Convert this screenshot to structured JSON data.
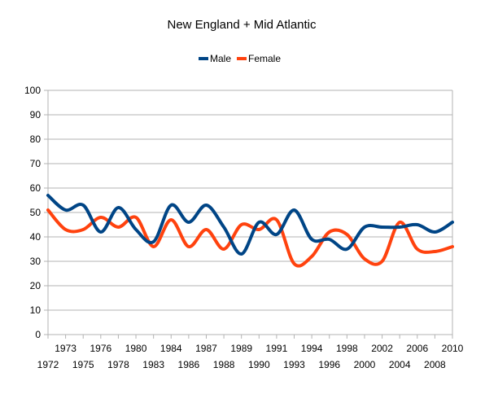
{
  "chart_data": {
    "type": "line",
    "title": "New England + Mid Atlantic",
    "xlabel": "",
    "ylabel": "",
    "ylim": [
      0,
      100
    ],
    "yticks": [
      0,
      10,
      20,
      30,
      40,
      50,
      60,
      70,
      80,
      90,
      100
    ],
    "grid": true,
    "legend_position": "top",
    "x": [
      "1972",
      "1973",
      "1975",
      "1976",
      "1978",
      "1980",
      "1983",
      "1984",
      "1986",
      "1987",
      "1988",
      "1989",
      "1990",
      "1991",
      "1993",
      "1994",
      "1996",
      "1998",
      "2000",
      "2002",
      "2004",
      "2006",
      "2008",
      "2010"
    ],
    "x_tick_labels_upper": [
      "1973",
      "1976",
      "1980",
      "1984",
      "1987",
      "1989",
      "1991",
      "1994",
      "1998",
      "2002",
      "2006",
      "2010"
    ],
    "x_tick_labels_lower": [
      "1972",
      "1975",
      "1978",
      "1983",
      "1986",
      "1988",
      "1990",
      "1993",
      "1996",
      "2000",
      "2004",
      "2008"
    ],
    "series": [
      {
        "name": "Male",
        "color": "#004586",
        "values": [
          57,
          51,
          53,
          42,
          52,
          43,
          38,
          53,
          46,
          53,
          44,
          33,
          46,
          41,
          51,
          39,
          39,
          35,
          44,
          44,
          44,
          45,
          42,
          46
        ]
      },
      {
        "name": "Female",
        "color": "#ff420e",
        "values": [
          51,
          43,
          43,
          48,
          44,
          48,
          36,
          47,
          36,
          43,
          35,
          45,
          43,
          47,
          29,
          32,
          42,
          41,
          31,
          30,
          46,
          35,
          34,
          36
        ]
      }
    ]
  }
}
